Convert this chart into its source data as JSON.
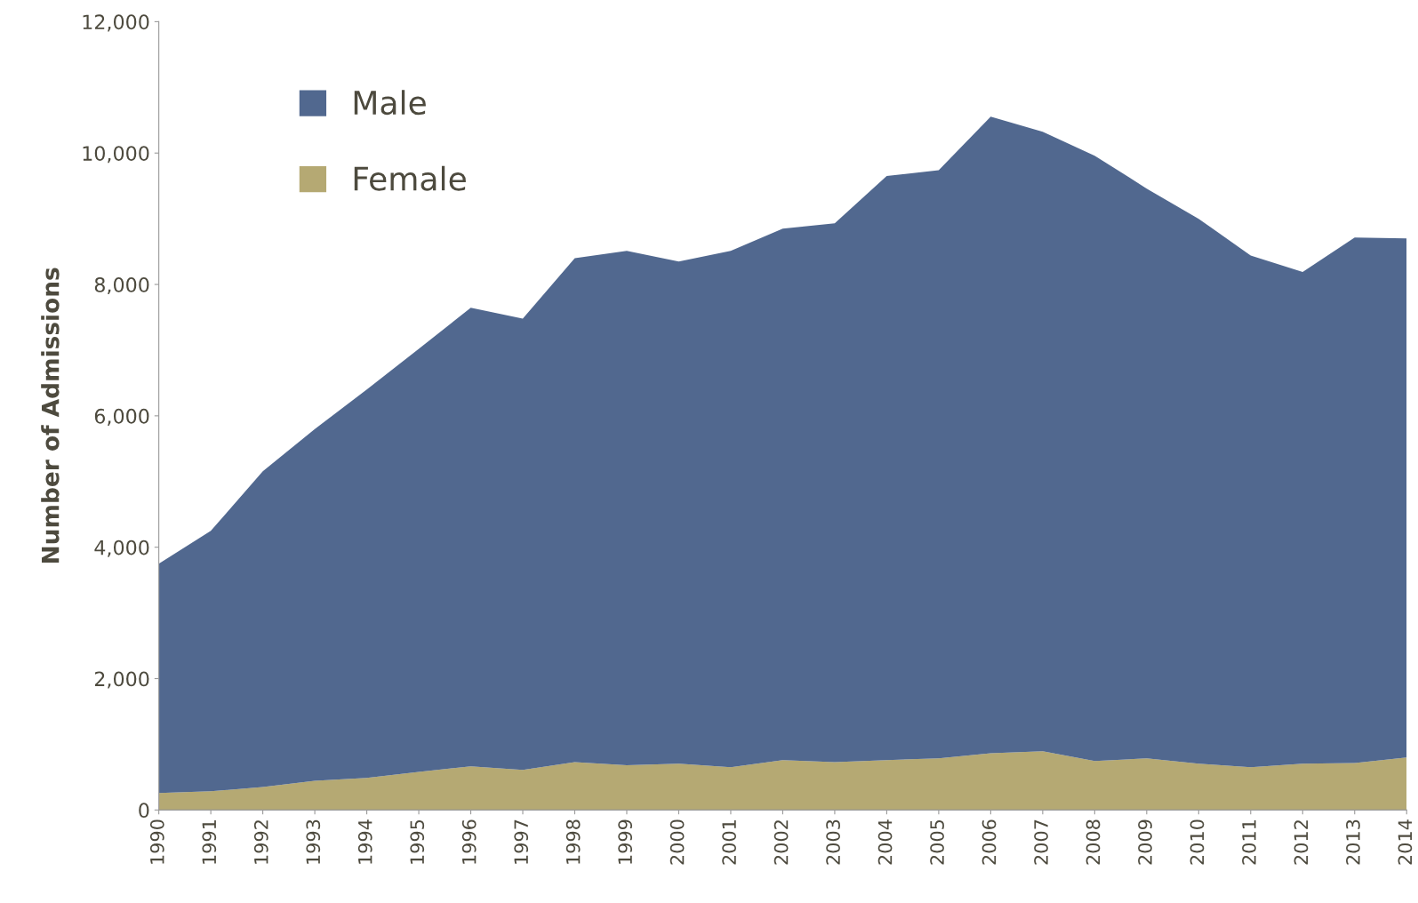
{
  "chart_data": {
    "type": "area",
    "stacked": true,
    "ylabel": "Number of Admissions",
    "categories": [
      "1990",
      "1991",
      "1992",
      "1993",
      "1994",
      "1995",
      "1996",
      "1997",
      "1998",
      "1999",
      "2000",
      "2001",
      "2002",
      "2003",
      "2004",
      "2005",
      "2006",
      "2007",
      "2008",
      "2009",
      "2010",
      "2011",
      "2012",
      "2013",
      "2014"
    ],
    "series": [
      {
        "name": "Female",
        "color": "#b5a973",
        "values": [
          260,
          285,
          350,
          445,
          490,
          580,
          665,
          610,
          730,
          680,
          705,
          650,
          760,
          730,
          760,
          785,
          865,
          895,
          745,
          785,
          705,
          650,
          705,
          715,
          800
        ]
      },
      {
        "name": "Male",
        "color": "#51688f",
        "values": [
          3490,
          3965,
          4805,
          5355,
          5910,
          6440,
          6980,
          6870,
          7670,
          7830,
          7645,
          7860,
          8090,
          8200,
          8890,
          8955,
          9690,
          9430,
          9215,
          8675,
          8295,
          7790,
          7485,
          8000,
          7900
        ]
      }
    ],
    "ylim": [
      0,
      12000
    ],
    "yticks": [
      {
        "value": 0,
        "label": "0"
      },
      {
        "value": 2000,
        "label": "2,000"
      },
      {
        "value": 4000,
        "label": "4,000"
      },
      {
        "value": 6000,
        "label": "6,000"
      },
      {
        "value": 8000,
        "label": "8,000"
      },
      {
        "value": 10000,
        "label": "10,000"
      },
      {
        "value": 12000,
        "label": "12,000"
      }
    ],
    "grid": false,
    "legend": "top left"
  }
}
